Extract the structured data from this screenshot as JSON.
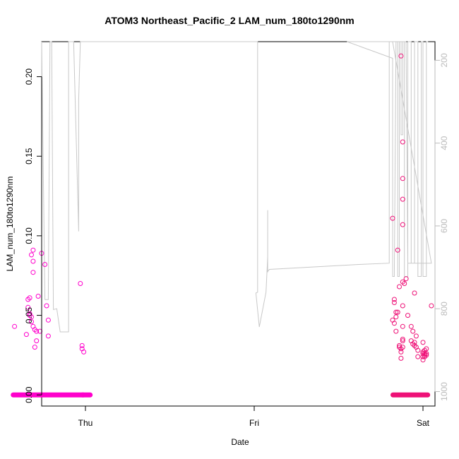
{
  "chart_data": {
    "type": "scatter",
    "title": "ATOM3 Northeast_Pacific_2 LAM_num_180to1290nm",
    "xlabel": "Date",
    "ylabel": "LAM_num_180to1290nm",
    "x_ticks": [
      "Thu",
      "Fri",
      "Sat"
    ],
    "y_ticks": [
      "0.00",
      "0.05",
      "0.10",
      "0.15",
      "0.20"
    ],
    "ylim": [
      -0.007,
      0.222
    ],
    "y2_ticks": [
      "200",
      "400",
      "600",
      "800",
      "1000"
    ],
    "y2lim": [
      1035,
      155
    ],
    "y2_reversed": true,
    "grid": false,
    "colors": {
      "points_left": "#ff00cc",
      "points_right": "#ee1177",
      "line": "#c8c8c8",
      "secondary_axis": "#bbbbbb",
      "axis": "#000000"
    },
    "series": [
      {
        "kind": "points",
        "values": [
          [
            -0.42,
            0.043
          ],
          [
            -0.35,
            0.038
          ],
          [
            -0.34,
            0.06
          ],
          [
            -0.34,
            0.055
          ],
          [
            -0.33,
            0.061
          ],
          [
            -0.33,
            0.051
          ],
          [
            -0.33,
            0.05
          ],
          [
            -0.32,
            0.049
          ],
          [
            -0.32,
            0.046
          ],
          [
            -0.32,
            0.088
          ],
          [
            -0.31,
            0.091
          ],
          [
            -0.31,
            0.084
          ],
          [
            -0.31,
            0.077
          ],
          [
            -0.31,
            0.043
          ],
          [
            -0.3,
            0.041
          ],
          [
            -0.3,
            0.03
          ],
          [
            -0.29,
            0.04
          ],
          [
            -0.29,
            0.034
          ],
          [
            -0.28,
            0.062
          ],
          [
            -0.27,
            0.04
          ],
          [
            -0.26,
            0.089
          ],
          [
            -0.24,
            0.082
          ],
          [
            -0.23,
            0.056
          ],
          [
            -0.22,
            0.047
          ],
          [
            -0.22,
            0.037
          ],
          [
            -0.03,
            0.07
          ],
          [
            -0.02,
            0.031
          ],
          [
            -0.02,
            0.029
          ],
          [
            -0.01,
            0.027
          ],
          [
            1.82,
            0.111
          ],
          [
            1.82,
            0.047
          ],
          [
            1.83,
            0.06
          ],
          [
            1.83,
            0.045
          ],
          [
            1.83,
            0.058
          ],
          [
            1.84,
            0.052
          ],
          [
            1.84,
            0.049
          ],
          [
            1.84,
            0.04
          ],
          [
            1.85,
            0.091
          ],
          [
            1.85,
            0.052
          ],
          [
            1.86,
            0.068
          ],
          [
            1.86,
            0.031
          ],
          [
            1.86,
            0.03
          ],
          [
            1.87,
            0.029
          ],
          [
            1.87,
            0.027
          ],
          [
            1.87,
            0.023
          ],
          [
            1.87,
            0.213
          ],
          [
            1.88,
            0.159
          ],
          [
            1.88,
            0.136
          ],
          [
            1.88,
            0.123
          ],
          [
            1.88,
            0.107
          ],
          [
            1.88,
            0.071
          ],
          [
            1.88,
            0.056
          ],
          [
            1.88,
            0.043
          ],
          [
            1.88,
            0.035
          ],
          [
            1.88,
            0.034
          ],
          [
            1.88,
            0.03
          ],
          [
            1.89,
            0.07
          ],
          [
            1.9,
            0.073
          ],
          [
            1.91,
            0.05
          ],
          [
            1.93,
            0.043
          ],
          [
            1.93,
            0.034
          ],
          [
            1.94,
            0.04
          ],
          [
            1.94,
            0.032
          ],
          [
            1.95,
            0.031
          ],
          [
            1.95,
            0.064
          ],
          [
            1.95,
            0.033
          ],
          [
            1.96,
            0.037
          ],
          [
            1.96,
            0.03
          ],
          [
            1.97,
            0.028
          ],
          [
            1.97,
            0.024
          ],
          [
            2.0,
            0.033
          ],
          [
            2.0,
            0.026
          ],
          [
            2.0,
            0.024
          ],
          [
            2.0,
            0.022
          ],
          [
            2.0,
            0.027
          ],
          [
            2.01,
            0.025
          ],
          [
            2.01,
            0.028
          ],
          [
            2.01,
            0.026
          ],
          [
            2.01,
            0.024
          ],
          [
            2.02,
            0.025
          ],
          [
            2.02,
            0.029
          ],
          [
            2.02,
            0.026
          ],
          [
            2.05,
            0.056
          ]
        ],
        "zero_bands": [
          [
            -0.43,
            -0.01
          ],
          [
            -0.02,
            0.03
          ],
          [
            1.82,
            2.03
          ]
        ]
      },
      {
        "kind": "line",
        "axis": "secondary",
        "values": [
          [
            -0.39,
            613
          ],
          [
            -0.39,
            665
          ],
          [
            -0.36,
            665
          ],
          [
            -0.35,
            155
          ],
          [
            -0.31,
            155
          ],
          [
            -0.3,
            722
          ],
          [
            -0.28,
            722
          ],
          [
            -0.27,
            155
          ],
          [
            -0.26,
            155
          ],
          [
            -0.24,
            778
          ],
          [
            -0.22,
            778
          ],
          [
            -0.21,
            155
          ],
          [
            -0.2,
            155
          ],
          [
            -0.19,
            802
          ],
          [
            -0.17,
            800
          ],
          [
            -0.15,
            856
          ],
          [
            -0.1,
            856
          ],
          [
            -0.1,
            155
          ],
          [
            -0.07,
            155
          ],
          [
            -0.04,
            613
          ],
          [
            -0.04,
            295
          ],
          [
            -0.03,
            155
          ],
          [
            -0.02,
            155
          ],
          [
            1.02,
            155
          ],
          [
            1.02,
            760
          ],
          [
            1.01,
            762
          ],
          [
            1.03,
            844
          ],
          [
            1.07,
            760
          ],
          [
            1.08,
            674
          ],
          [
            1.08,
            562
          ],
          [
            1.08,
            712
          ],
          [
            1.08,
            710
          ],
          [
            1.09,
            705
          ],
          [
            1.62,
            693
          ],
          [
            1.8,
            690
          ],
          [
            1.8,
            155
          ],
          [
            1.9,
            155
          ],
          [
            1.91,
            690
          ],
          [
            2.05,
            690
          ],
          [
            1.82,
            155
          ],
          [
            1.55,
            155
          ],
          [
            1.82,
            195
          ],
          [
            1.82,
            722
          ],
          [
            1.83,
            722
          ],
          [
            1.84,
            155
          ],
          [
            1.85,
            155
          ],
          [
            1.85,
            722
          ],
          [
            1.86,
            722
          ],
          [
            1.86,
            155
          ],
          [
            1.87,
            155
          ],
          [
            1.87,
            380
          ],
          [
            1.88,
            380
          ],
          [
            1.88,
            155
          ],
          [
            1.89,
            155
          ],
          [
            1.89,
            722
          ],
          [
            1.91,
            722
          ],
          [
            1.91,
            155
          ],
          [
            1.93,
            155
          ],
          [
            1.93,
            690
          ],
          [
            1.95,
            690
          ],
          [
            1.95,
            155
          ],
          [
            1.97,
            155
          ],
          [
            1.97,
            722
          ],
          [
            1.99,
            722
          ],
          [
            1.99,
            155
          ],
          [
            2.0,
            155
          ],
          [
            2.0,
            722
          ],
          [
            2.02,
            722
          ],
          [
            2.02,
            155
          ],
          [
            2.03,
            155
          ]
        ]
      }
    ]
  }
}
